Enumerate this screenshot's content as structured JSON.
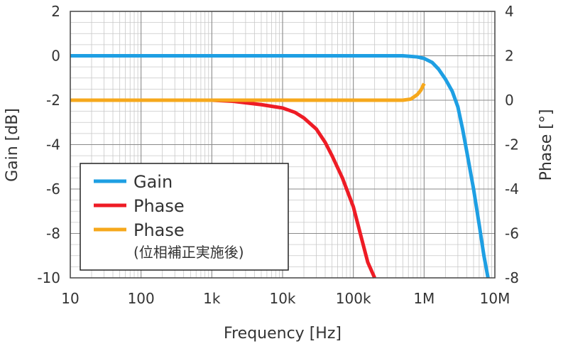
{
  "chart_data": {
    "type": "line",
    "title": "",
    "xlabel": "Frequency [Hz]",
    "ylabel_left": "Gain [dB]",
    "ylabel_right": "Phase [°]",
    "xscale": "log",
    "xlim": [
      10,
      10000000
    ],
    "ylim_left": [
      -10,
      2
    ],
    "ylim_right": [
      -8,
      4
    ],
    "grid": true,
    "x_tick_values": [
      10,
      100,
      1000,
      10000,
      100000,
      1000000,
      10000000
    ],
    "x_tick_labels": [
      "10",
      "100",
      "1k",
      "10k",
      "100k",
      "1M",
      "10M"
    ],
    "y_left_ticks": [
      {
        "value": 2,
        "label": "2"
      },
      {
        "value": 0,
        "label": "0"
      },
      {
        "value": -2,
        "label": "-2"
      },
      {
        "value": -4,
        "label": "-4"
      },
      {
        "value": -6,
        "label": "-6"
      },
      {
        "value": -8,
        "label": "-8"
      },
      {
        "value": -10,
        "label": "-10"
      }
    ],
    "y_right_ticks": [
      {
        "value": 4,
        "label": "4"
      },
      {
        "value": 2,
        "label": "2"
      },
      {
        "value": 0,
        "label": "0"
      },
      {
        "value": -2,
        "label": "-2"
      },
      {
        "value": -4,
        "label": "-4"
      },
      {
        "value": -6,
        "label": "-6"
      },
      {
        "value": -8,
        "label": "-8"
      }
    ],
    "legend_position": "bottom-left",
    "series": [
      {
        "name": "Gain",
        "axis": "left",
        "color": "#1e9fe3",
        "points": [
          [
            10,
            0
          ],
          [
            100000,
            0
          ],
          [
            500000,
            0
          ],
          [
            800000,
            -0.05
          ],
          [
            1000000,
            -0.12
          ],
          [
            1300000,
            -0.3
          ],
          [
            1600000,
            -0.6
          ],
          [
            2000000,
            -1.05
          ],
          [
            2500000,
            -1.6
          ],
          [
            3000000,
            -2.3
          ],
          [
            3500000,
            -3.3
          ],
          [
            4000000,
            -4.3
          ],
          [
            5000000,
            -6.0
          ],
          [
            6000000,
            -7.6
          ],
          [
            7000000,
            -9.0
          ],
          [
            8000000,
            -10.0
          ]
        ]
      },
      {
        "name": "Phase",
        "axis": "right",
        "color": "#ee1c25",
        "points": [
          [
            10,
            0
          ],
          [
            1000,
            0
          ],
          [
            2000,
            -0.05
          ],
          [
            5000,
            -0.2
          ],
          [
            10000,
            -0.35
          ],
          [
            15000,
            -0.55
          ],
          [
            20000,
            -0.8
          ],
          [
            30000,
            -1.3
          ],
          [
            40000,
            -1.9
          ],
          [
            50000,
            -2.5
          ],
          [
            70000,
            -3.5
          ],
          [
            100000,
            -4.8
          ],
          [
            130000,
            -6.2
          ],
          [
            160000,
            -7.3
          ],
          [
            200000,
            -8.0
          ]
        ]
      },
      {
        "name": "Phase",
        "subtitle": "(位相補正実施後)",
        "axis": "right",
        "color": "#f6a81c",
        "points": [
          [
            10,
            0
          ],
          [
            1000,
            0
          ],
          [
            100000,
            0
          ],
          [
            500000,
            0
          ],
          [
            650000,
            0.05
          ],
          [
            800000,
            0.25
          ],
          [
            900000,
            0.45
          ],
          [
            1000000,
            0.75
          ]
        ]
      }
    ]
  }
}
